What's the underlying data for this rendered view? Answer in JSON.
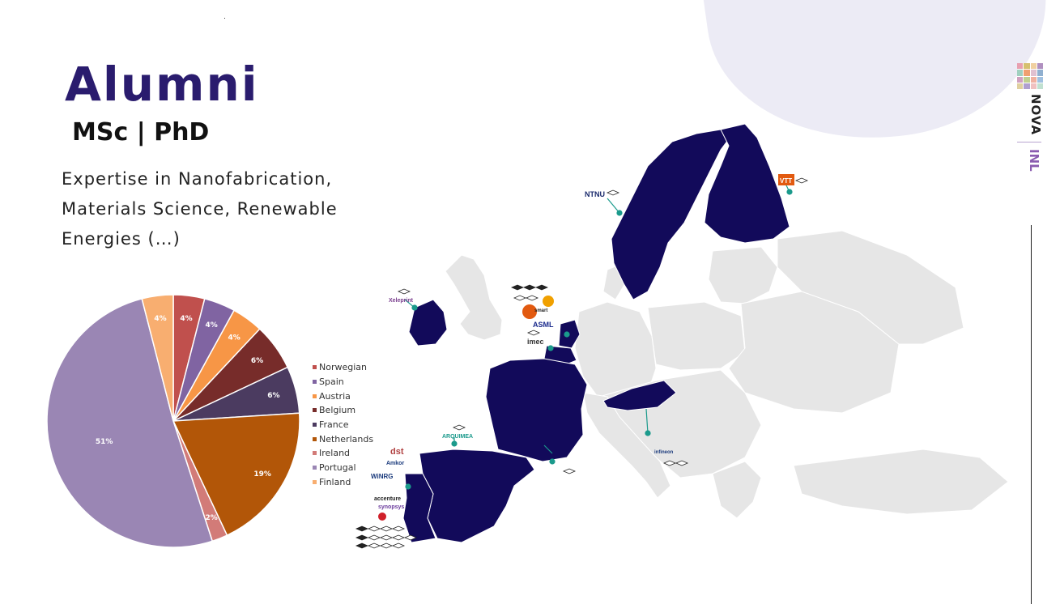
{
  "page": {
    "title": "Alumni",
    "subtitle": "MSc | PhD",
    "description": "Expertise in Nanofabrication, Materials Science, Renewable Energies (…)"
  },
  "branding": {
    "nova_label": "NOVA",
    "inl_label": "INL"
  },
  "chart_data": {
    "type": "pie",
    "title": "",
    "legend_position": "right",
    "slices": [
      {
        "label": "Norwegian",
        "value": 4,
        "display": "4%",
        "color": "#c0504d"
      },
      {
        "label": "Spain",
        "value": 4,
        "display": "4%",
        "color": "#8064a2"
      },
      {
        "label": "Austria",
        "value": 4,
        "display": "4%",
        "color": "#f79646"
      },
      {
        "label": "Belgium",
        "value": 6,
        "display": "6%",
        "color": "#772c2a"
      },
      {
        "label": "France",
        "value": 6,
        "display": "6%",
        "color": "#4b3b60"
      },
      {
        "label": "Netherlands",
        "value": 19,
        "display": "19%",
        "color": "#b25608"
      },
      {
        "label": "Ireland",
        "value": 2,
        "display": "2%",
        "color": "#d27b78"
      },
      {
        "label": "Portugal",
        "value": 51,
        "display": "51%",
        "color": "#9a86b4"
      },
      {
        "label": "Finland",
        "value": 4,
        "display": "4%",
        "color": "#f8ae70"
      }
    ]
  },
  "map": {
    "highlight_color": "#120a5a",
    "base_color": "#e6e6e6",
    "connector_color": "#1b9a8c",
    "highlighted_countries": [
      "Norway",
      "Sweden",
      "Finland",
      "Ireland",
      "Netherlands",
      "Belgium",
      "France",
      "Spain",
      "Portugal",
      "Austria"
    ],
    "logos": [
      {
        "text": "NTNU",
        "color": "#1a2a6c"
      },
      {
        "text": "VTT",
        "color": "#e25a10"
      },
      {
        "text": "Xeleprint",
        "color": "#7a3e8e"
      },
      {
        "text": "smart",
        "color": "#e25a10"
      },
      {
        "text": "ASML",
        "color": "#1a2a8c"
      },
      {
        "text": "imec",
        "color": "#333333"
      },
      {
        "text": "ARQUIMEA",
        "color": "#1b9a8c"
      },
      {
        "text": "dst",
        "color": "#b04040"
      },
      {
        "text": "Amkor",
        "color": "#1a3a7c"
      },
      {
        "text": "WiNRG",
        "color": "#1a3a7c"
      },
      {
        "text": "accenture",
        "color": "#222222"
      },
      {
        "text": "synopsys",
        "color": "#6a3a9c"
      },
      {
        "text": "infineon",
        "color": "#1a3a7c"
      }
    ]
  }
}
